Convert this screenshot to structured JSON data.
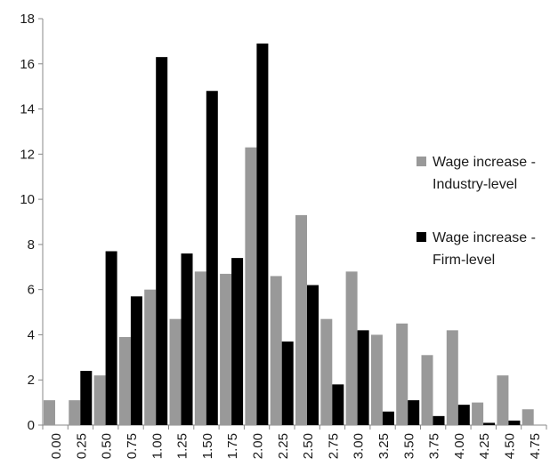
{
  "chart_data": {
    "type": "bar",
    "title": "",
    "xlabel": "",
    "ylabel": "",
    "ylim": [
      0,
      18
    ],
    "yticks": [
      0,
      2,
      4,
      6,
      8,
      10,
      12,
      14,
      16,
      18
    ],
    "categories": [
      "0.00",
      "0.25",
      "0.50",
      "0.75",
      "1.00",
      "1.25",
      "1.50",
      "1.75",
      "2.00",
      "2.25",
      "2.50",
      "2.75",
      "3.00",
      "3.25",
      "3.50",
      "3.75",
      "4.00",
      "4.25",
      "4.50",
      "4.75"
    ],
    "grid": false,
    "legend_position": "right",
    "series": [
      {
        "name_line1": "Wage increase -",
        "name_line2": "Industry-level",
        "color": "#999999",
        "values": [
          1.1,
          1.1,
          2.2,
          3.9,
          6.0,
          4.7,
          6.8,
          6.7,
          12.3,
          6.6,
          9.3,
          4.7,
          6.8,
          4.0,
          4.5,
          3.1,
          4.2,
          1.0,
          2.2,
          0.7
        ]
      },
      {
        "name_line1": "Wage increase -",
        "name_line2": "Firm-level",
        "color": "#000000",
        "values": [
          0,
          2.4,
          7.7,
          5.7,
          16.3,
          7.6,
          14.8,
          7.4,
          16.9,
          3.7,
          6.2,
          1.8,
          4.2,
          0.6,
          1.1,
          0.4,
          0.9,
          0.1,
          0.2,
          0
        ]
      }
    ]
  }
}
